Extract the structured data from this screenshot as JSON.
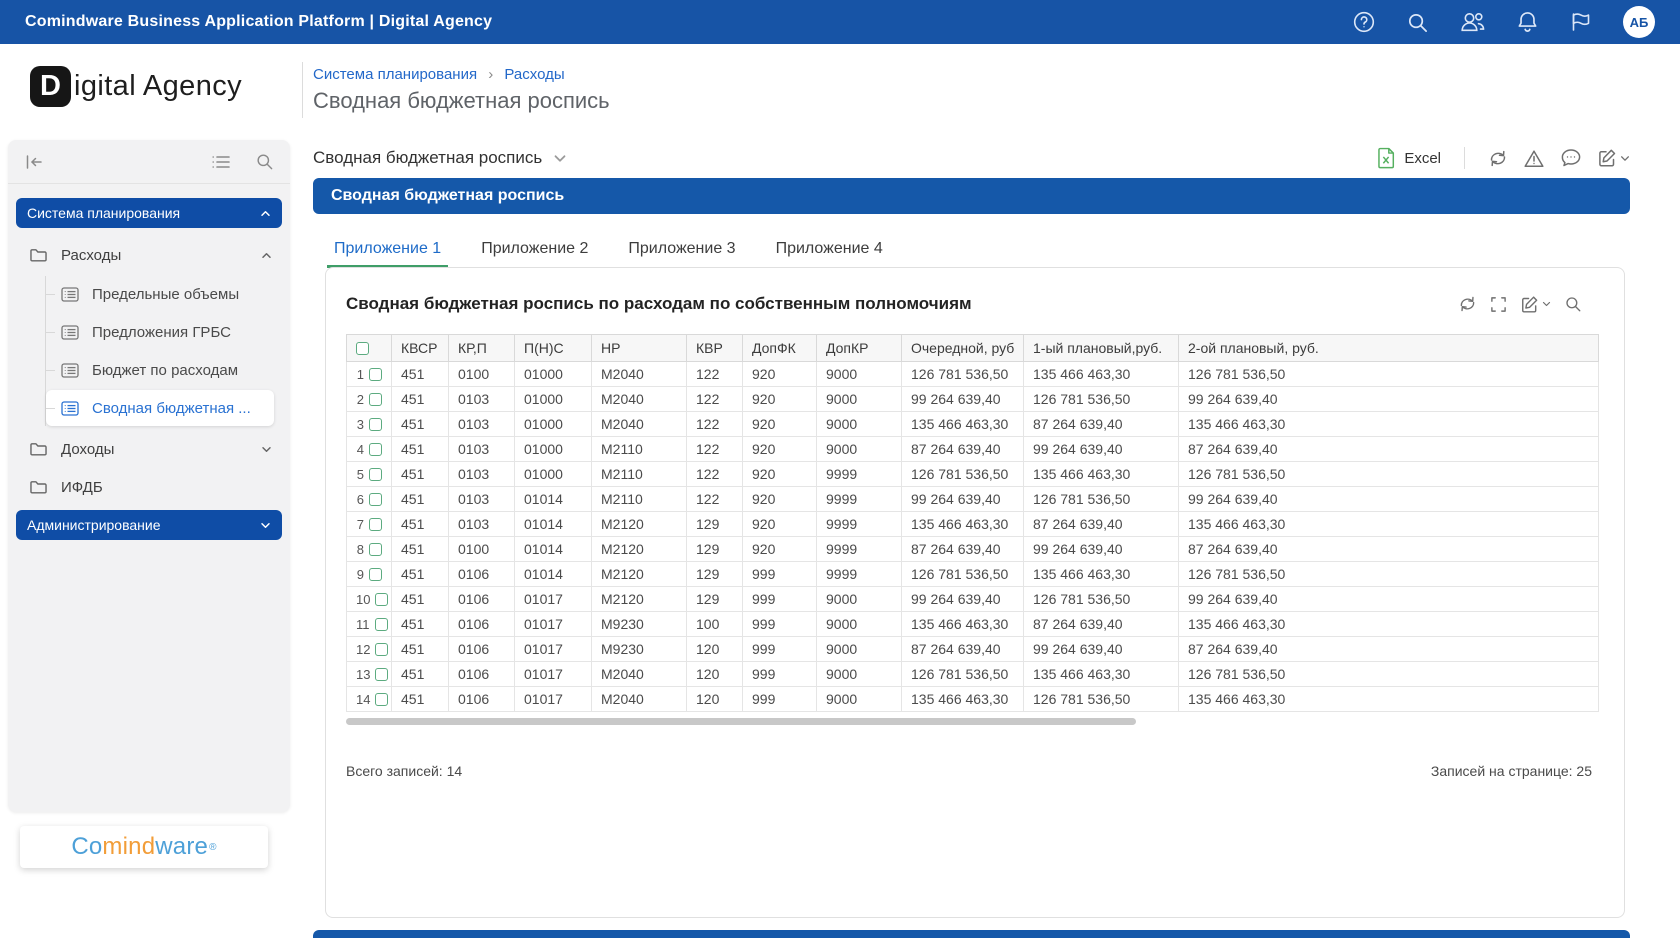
{
  "topbar": {
    "title": "Comindware Business Application Platform | Digital Agency",
    "icons": [
      "help-icon",
      "search-icon",
      "users-icon",
      "notifications-icon",
      "flag-icon"
    ],
    "avatar_initials": "АБ"
  },
  "header": {
    "logo_d": "D",
    "logo_rest": "igital Agency",
    "breadcrumb": {
      "first": "Система планирования",
      "separator": "›",
      "second": "Расходы"
    },
    "page_title": "Сводная бюджетная роспись"
  },
  "sidebar": {
    "toolbar_icons": [
      "collapse-icon",
      "list-icon",
      "search-icon"
    ],
    "items": [
      {
        "type": "pill",
        "label": "Система планирования",
        "chevron": "up"
      },
      {
        "type": "folder",
        "label": "Расходы",
        "chevron": "up",
        "children": [
          {
            "label": "Предельные объемы",
            "active": false
          },
          {
            "label": "Предложения ГРБС",
            "active": false
          },
          {
            "label": "Бюджет по расходам",
            "active": false
          },
          {
            "label": "Сводная бюджетная ...",
            "active": true
          }
        ]
      },
      {
        "type": "folder",
        "label": "Доходы",
        "chevron": "down"
      },
      {
        "type": "folder",
        "label": "ИФДБ",
        "chevron": null
      },
      {
        "type": "pill",
        "label": "Администрирование",
        "chevron": "down"
      }
    ],
    "logo": {
      "part1": "Co",
      "part2": "mind",
      "part3": "ware",
      "reg": "®"
    }
  },
  "toolbar": {
    "view_title": "Сводная бюджетная роспись",
    "excel_label": "Excel",
    "action_icons": [
      "refresh-icon",
      "warning-icon",
      "comment-icon",
      "edit-icon"
    ]
  },
  "banner": {
    "title": "Сводная бюджетная роспись"
  },
  "tabs": [
    {
      "label": "Приложение 1",
      "active": true
    },
    {
      "label": "Приложение 2",
      "active": false
    },
    {
      "label": "Приложение 3",
      "active": false
    },
    {
      "label": "Приложение 4",
      "active": false
    }
  ],
  "panel": {
    "title": "Сводная бюджетная роспись по расходам по собственным полномочиям",
    "action_icons": [
      "refresh-icon",
      "expand-icon",
      "edit-icon",
      "search-icon"
    ],
    "table": {
      "columns": [
        "КВСР",
        "КР,П",
        "П(Н)С",
        "НР",
        "КВР",
        "ДопФК",
        "ДопКР",
        "Очередной, руб",
        "1-ый плановый,руб.",
        "2-ой плановый, руб."
      ],
      "rows": [
        [
          "451",
          "0100",
          "01000",
          "М2040",
          "122",
          "920",
          "9000",
          "126 781 536,50",
          "135 466 463,30",
          "126 781 536,50"
        ],
        [
          "451",
          "0103",
          "01000",
          "М2040",
          "122",
          "920",
          "9000",
          "99 264 639,40",
          "126 781 536,50",
          "99 264 639,40"
        ],
        [
          "451",
          "0103",
          "01000",
          "М2040",
          "122",
          "920",
          "9000",
          "135 466 463,30",
          "87 264 639,40",
          "135 466 463,30"
        ],
        [
          "451",
          "0103",
          "01000",
          "М2110",
          "122",
          "920",
          "9000",
          "87 264 639,40",
          "99 264 639,40",
          "87 264 639,40"
        ],
        [
          "451",
          "0103",
          "01000",
          "М2110",
          "122",
          "920",
          "9999",
          "126 781 536,50",
          "135 466 463,30",
          "126 781 536,50"
        ],
        [
          "451",
          "0103",
          "01014",
          "М2110",
          "122",
          "920",
          "9999",
          "99 264 639,40",
          "126 781 536,50",
          "99 264 639,40"
        ],
        [
          "451",
          "0103",
          "01014",
          "М2120",
          "129",
          "920",
          "9999",
          "135 466 463,30",
          "87 264 639,40",
          "135 466 463,30"
        ],
        [
          "451",
          "0100",
          "01014",
          "М2120",
          "129",
          "920",
          "9999",
          "87 264 639,40",
          "99 264 639,40",
          "87 264 639,40"
        ],
        [
          "451",
          "0106",
          "01014",
          "М2120",
          "129",
          "999",
          "9999",
          "126 781 536,50",
          "135 466 463,30",
          "126 781 536,50"
        ],
        [
          "451",
          "0106",
          "01017",
          "М2120",
          "129",
          "999",
          "9000",
          "99 264 639,40",
          "126 781 536,50",
          "99 264 639,40"
        ],
        [
          "451",
          "0106",
          "01017",
          "М9230",
          "100",
          "999",
          "9000",
          "135 466 463,30",
          "87 264 639,40",
          "135 466 463,30"
        ],
        [
          "451",
          "0106",
          "01017",
          "М9230",
          "120",
          "999",
          "9000",
          "87 264 639,40",
          "99 264 639,40",
          "87 264 639,40"
        ],
        [
          "451",
          "0106",
          "01017",
          "М2040",
          "120",
          "999",
          "9000",
          "126 781 536,50",
          "135 466 463,30",
          "126 781 536,50"
        ],
        [
          "451",
          "0106",
          "01017",
          "М2040",
          "120",
          "999",
          "9000",
          "135 466 463,30",
          "126 781 536,50",
          "135 466 463,30"
        ]
      ]
    },
    "footer": {
      "total_label": "Всего записей:",
      "total_value": "14",
      "per_page_label": "Записей на странице:",
      "per_page_value": "25"
    }
  },
  "colors": {
    "topbar_blue": "#1754a6",
    "banner_blue": "#1558a9",
    "pill_blue": "#0f4da6",
    "link_blue": "#2368c9",
    "active_tab_blue": "#1e6bc8",
    "tab_underline_green": "#3f9e68",
    "checkbox_green": "#5cab80",
    "excel_green": "#55b05f",
    "comindware_blue": "#4da0d8",
    "comindware_orange": "#f29d38"
  }
}
